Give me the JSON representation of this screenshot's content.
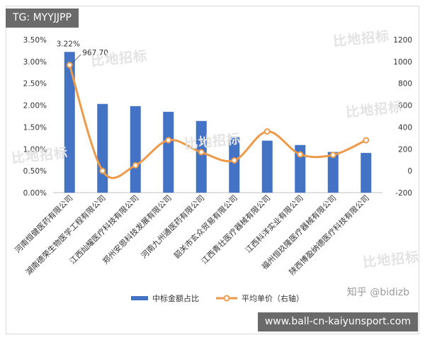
{
  "overlay": {
    "top_left_tag": "TG: MYYJJPP",
    "bottom_right_tag": "www.ball-cn-kaiyunsport.com",
    "zhihu_watermark": "知乎 @bidizb",
    "brand_watermark": "比地招标"
  },
  "chart_data": {
    "type": "bar",
    "categories": [
      "河南恒健医药有限公司",
      "湖南德荣生物医学工程有限公司",
      "江西灿耀医疗科技有限公司",
      "郑州安恩科技发展有限公司",
      "河南九州通医药有限公司",
      "韶关市玄众贸易有限公司",
      "江西青壮医疗器械有限公司",
      "江西科洋实业有限公司",
      "福州恒玖隆医疗器械有限公司",
      "陕西博盈纳德医疗科技有限公司"
    ],
    "series": [
      {
        "name": "中标金额占比",
        "type": "bar",
        "axis": "left",
        "color": "#4472c4",
        "values": [
          3.22,
          2.03,
          1.98,
          1.85,
          1.64,
          1.27,
          1.19,
          1.09,
          0.93,
          0.91
        ]
      },
      {
        "name": "平均单价（右轴）",
        "type": "line",
        "axis": "right",
        "color": "#ed9a4a",
        "values": [
          967.7,
          0,
          50,
          280,
          170,
          95,
          360,
          150,
          145,
          280
        ]
      }
    ],
    "left_axis": {
      "min": 0,
      "max": 3.5,
      "ticks": [
        "0.00%",
        "0.50%",
        "1.00%",
        "1.50%",
        "2.00%",
        "2.50%",
        "3.00%",
        "3.50%"
      ]
    },
    "right_axis": {
      "min": -200,
      "max": 1200,
      "ticks": [
        "-200",
        "0",
        "200",
        "400",
        "600",
        "800",
        "1000",
        "1200"
      ]
    },
    "data_labels": [
      {
        "series": 0,
        "index": 0,
        "text": "3.22%"
      },
      {
        "series": 1,
        "index": 0,
        "text": "967.70"
      }
    ],
    "grid": false,
    "legend": "bottom"
  }
}
